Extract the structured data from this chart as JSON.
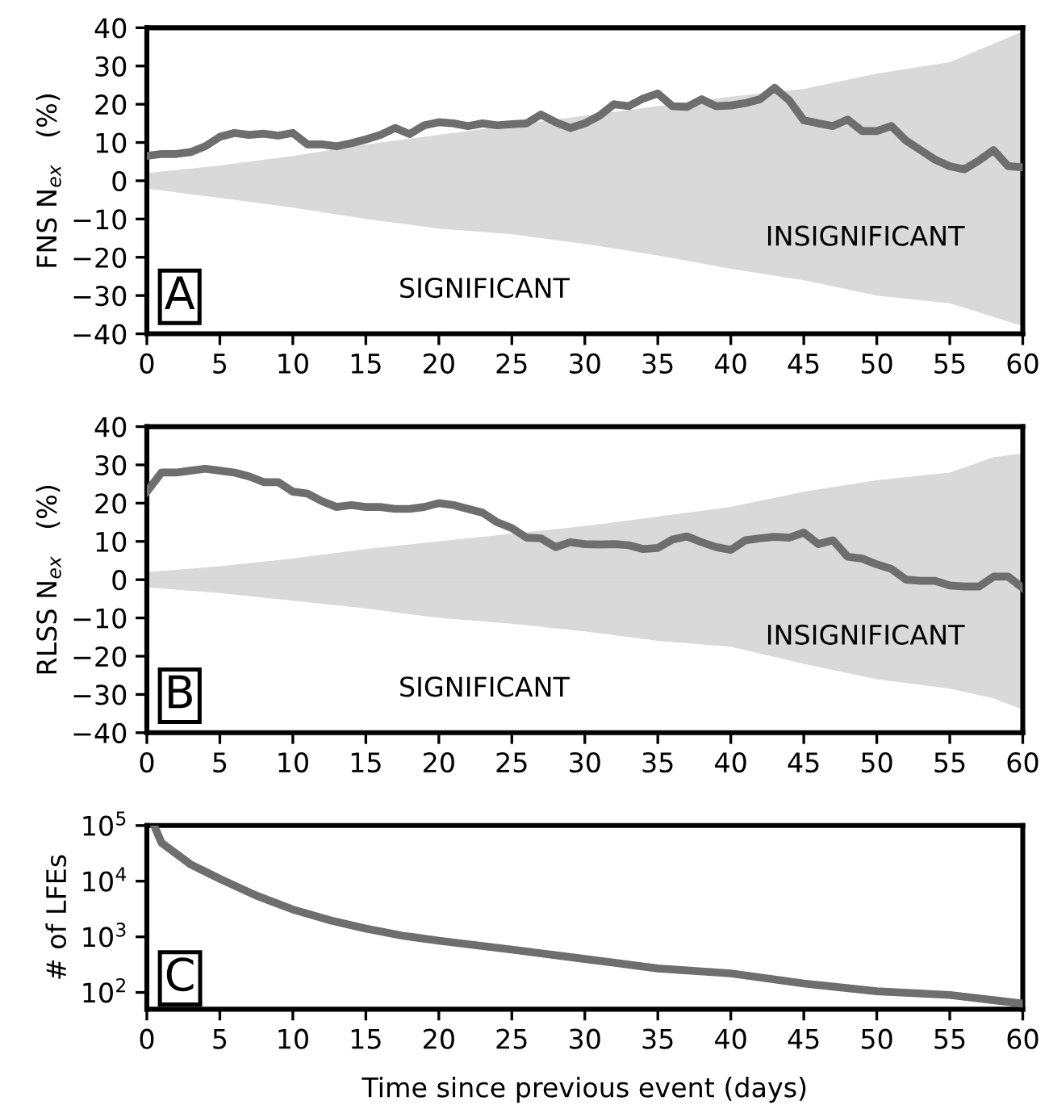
{
  "chart_data": [
    {
      "type": "line",
      "ylabel": "FNS N$_{ex}$   (%)",
      "xlim": [
        0,
        60
      ],
      "xticks": [
        0,
        5,
        10,
        15,
        20,
        25,
        30,
        35,
        40,
        45,
        50,
        55,
        60
      ],
      "ylim": [
        -40,
        40
      ],
      "yticks": [
        40,
        30,
        20,
        10,
        0,
        {
          "value": -10,
          "label": "−10"
        },
        {
          "value": -20,
          "label": "−20"
        },
        {
          "value": -30,
          "label": "−30"
        },
        {
          "value": -40,
          "label": "−40"
        }
      ],
      "grid": false,
      "legend": false,
      "series": [
        {
          "type": "area",
          "color": "#d9d9d9",
          "x": [
            0,
            5,
            10,
            15,
            20,
            25,
            30,
            35,
            40,
            45,
            50,
            55,
            60
          ],
          "values": [
            2,
            4,
            6.5,
            9.5,
            12,
            14.5,
            17,
            19.5,
            22,
            24,
            28,
            31,
            39
          ]
        },
        {
          "type": "area",
          "color": "#d9d9d9",
          "x": [
            0,
            5,
            10,
            15,
            20,
            25,
            30,
            35,
            40,
            45,
            50,
            55,
            60
          ],
          "values": [
            -2,
            -4.5,
            -7,
            -10,
            -12.5,
            -14,
            -16.5,
            -19.5,
            -23,
            -26,
            -30,
            -32,
            -38
          ]
        },
        {
          "color": "#6e6e6e",
          "x": [
            0,
            1,
            2,
            3,
            4,
            5,
            6,
            7,
            8,
            9,
            10,
            11,
            12,
            13,
            14,
            15,
            16,
            17,
            18,
            19,
            20,
            21,
            22,
            23,
            24,
            25,
            26,
            27,
            28,
            29,
            30,
            31,
            32,
            33,
            34,
            35,
            36,
            37,
            38,
            39,
            40,
            41,
            42,
            43,
            44,
            45,
            46,
            47,
            48,
            49,
            50,
            51,
            52,
            53,
            54,
            55,
            56,
            57,
            58,
            59,
            60
          ],
          "values": [
            6.5,
            7,
            7,
            7.5,
            9,
            11.5,
            12.5,
            12,
            12.3,
            11.8,
            12.5,
            9.5,
            9.5,
            9,
            9.8,
            10.8,
            12,
            13.8,
            12.2,
            14.5,
            15.3,
            15,
            14.3,
            15,
            14.5,
            14.8,
            15,
            17.3,
            15.3,
            13.8,
            15,
            17,
            20,
            19.5,
            21.5,
            22.8,
            19.5,
            19.3,
            21.3,
            19.5,
            19.7,
            20.3,
            21.3,
            24.3,
            21,
            15.8,
            15,
            14.3,
            16,
            13,
            13,
            14.3,
            10.5,
            8,
            5.5,
            3.8,
            3,
            5.3,
            8,
            3.8,
            3.5
          ]
        }
      ],
      "annotations": [
        "A",
        "SIGNIFICANT",
        "INSIGNIFICANT"
      ]
    },
    {
      "type": "line",
      "ylabel": "RLSS N$_{ex}$   (%)",
      "xlim": [
        0,
        60
      ],
      "xticks": [
        0,
        5,
        10,
        15,
        20,
        25,
        30,
        35,
        40,
        45,
        50,
        55,
        60
      ],
      "ylim": [
        -40,
        40
      ],
      "yticks": [
        40,
        30,
        20,
        10,
        0,
        {
          "value": -10,
          "label": "−10"
        },
        {
          "value": -20,
          "label": "−20"
        },
        {
          "value": -30,
          "label": "−30"
        },
        {
          "value": -40,
          "label": "−40"
        }
      ],
      "grid": false,
      "legend": false,
      "series": [
        {
          "type": "area",
          "color": "#d9d9d9",
          "x": [
            0,
            5,
            10,
            15,
            20,
            25,
            30,
            35,
            40,
            45,
            50,
            55,
            58,
            60
          ],
          "values": [
            2,
            3.5,
            5.5,
            8,
            10,
            12,
            14,
            16.5,
            19,
            23,
            26,
            28,
            32,
            33
          ]
        },
        {
          "type": "area",
          "color": "#d9d9d9",
          "x": [
            0,
            5,
            10,
            15,
            20,
            25,
            30,
            35,
            40,
            45,
            50,
            55,
            58,
            60
          ],
          "values": [
            -2,
            -3.5,
            -5.5,
            -7.5,
            -10,
            -11.5,
            -13.5,
            -16,
            -17.5,
            -22,
            -26,
            -28.5,
            -31,
            -34
          ]
        },
        {
          "color": "#6e6e6e",
          "x": [
            0,
            1,
            2,
            3,
            4,
            5,
            6,
            7,
            8,
            9,
            10,
            11,
            12,
            13,
            14,
            15,
            16,
            17,
            18,
            19,
            20,
            21,
            22,
            23,
            24,
            25,
            26,
            27,
            28,
            29,
            30,
            31,
            32,
            33,
            34,
            35,
            36,
            37,
            38,
            39,
            40,
            41,
            42,
            43,
            44,
            45,
            46,
            47,
            48,
            49,
            50,
            51,
            52,
            53,
            54,
            55,
            56,
            57,
            58,
            59,
            60
          ],
          "values": [
            23,
            28,
            28,
            28.5,
            29,
            28.5,
            28,
            27,
            25.5,
            25.5,
            23,
            22.5,
            20.5,
            19,
            19.5,
            19,
            19,
            18.5,
            18.5,
            19,
            20,
            19.5,
            18.5,
            17.5,
            15,
            13.5,
            11,
            10.8,
            8.5,
            9.8,
            9.3,
            9.2,
            9.3,
            9,
            8,
            8.3,
            10.5,
            11.3,
            9.8,
            8.5,
            7.8,
            10.3,
            10.8,
            11.2,
            11,
            12.3,
            9.3,
            10.3,
            6,
            5.5,
            4,
            2.8,
            0,
            -0.3,
            -0.3,
            -1.5,
            -1.8,
            -1.8,
            0.8,
            0.8,
            -2.2
          ]
        }
      ],
      "annotations": [
        "B",
        "SIGNIFICANT",
        "INSIGNIFICANT"
      ]
    },
    {
      "type": "line",
      "ylabel": "# of LFEs",
      "xlabel": "Time since previous event (days)",
      "log": "y",
      "xlim": [
        0,
        60
      ],
      "xticks": [
        0,
        5,
        10,
        15,
        20,
        25,
        30,
        35,
        40,
        45,
        50,
        55,
        60
      ],
      "ylim": [
        50,
        100000
      ],
      "yticks": [
        {
          "value": 100,
          "label": "10$^{2}$"
        },
        {
          "value": 1000,
          "label": "10$^{3}$"
        },
        {
          "value": 10000,
          "label": "10$^{4}$"
        },
        {
          "value": 100000,
          "label": "10$^{5}$"
        }
      ],
      "grid": false,
      "legend": false,
      "series": [
        {
          "color": "#6e6e6e",
          "x": [
            0.5,
            1,
            3,
            5,
            7.5,
            10,
            12.5,
            15,
            17.5,
            20,
            25,
            30,
            35,
            40,
            45,
            50,
            55,
            60
          ],
          "values": [
            100000,
            49000,
            20000,
            11000,
            5500,
            3100,
            2000,
            1400,
            1050,
            850,
            590,
            400,
            270,
            220,
            145,
            105,
            90,
            63
          ]
        }
      ],
      "annotations": [
        "C"
      ]
    }
  ]
}
